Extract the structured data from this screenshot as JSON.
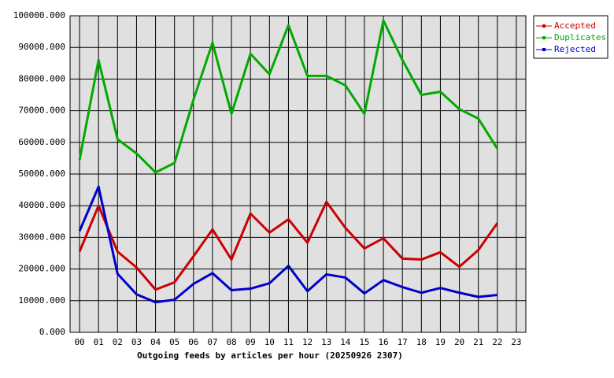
{
  "chart_data": {
    "type": "line",
    "x_label": "Outgoing feeds by articles per hour (20250926 2307)",
    "categories": [
      "00",
      "01",
      "02",
      "03",
      "04",
      "05",
      "06",
      "07",
      "08",
      "09",
      "10",
      "11",
      "12",
      "13",
      "14",
      "15",
      "16",
      "17",
      "18",
      "19",
      "20",
      "21",
      "22",
      "23"
    ],
    "series": [
      {
        "name": "Accepted",
        "color": "#cc0000",
        "values": [
          25500,
          40000,
          25500,
          20500,
          13500,
          15800,
          24000,
          32500,
          23000,
          37500,
          31500,
          35700,
          28300,
          41200,
          33000,
          26500,
          29700,
          23300,
          23000,
          25300,
          20700,
          26000,
          34500,
          null
        ]
      },
      {
        "name": "Duplicates",
        "color": "#00aa00",
        "values": [
          54500,
          86000,
          61000,
          56500,
          50500,
          53500,
          73500,
          91500,
          69000,
          88000,
          81500,
          97000,
          81000,
          81000,
          78000,
          69000,
          98500,
          86000,
          75000,
          76000,
          70500,
          67500,
          58000,
          null
        ]
      },
      {
        "name": "Rejected",
        "color": "#0000cc",
        "values": [
          32000,
          46000,
          18500,
          12000,
          9500,
          10300,
          15300,
          18700,
          13300,
          13800,
          15500,
          21000,
          13000,
          18300,
          17300,
          12300,
          16500,
          14300,
          12500,
          14000,
          12500,
          11200,
          11800,
          null
        ]
      }
    ],
    "ylim": [
      0,
      100000
    ],
    "yticks": [
      {
        "value": 0,
        "label": "0.000"
      },
      {
        "value": 10000,
        "label": "10000.000"
      },
      {
        "value": 20000,
        "label": "20000.000"
      },
      {
        "value": 30000,
        "label": "30000.000"
      },
      {
        "value": 40000,
        "label": "40000.000"
      },
      {
        "value": 50000,
        "label": "50000.000"
      },
      {
        "value": 60000,
        "label": "60000.000"
      },
      {
        "value": 70000,
        "label": "70000.000"
      },
      {
        "value": 80000,
        "label": "80000.000"
      },
      {
        "value": 90000,
        "label": "90000.000"
      },
      {
        "value": 100000,
        "label": "100000.000"
      }
    ],
    "grid": true
  }
}
